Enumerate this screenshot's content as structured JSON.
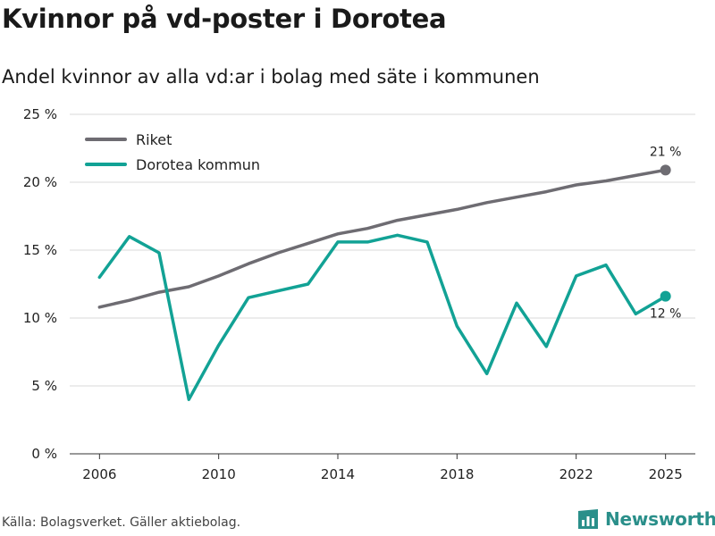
{
  "title": "Kvinnor på vd-poster i Dorotea",
  "subtitle": "Andel kvinnor av alla vd:ar i bolag med säte i kommunen",
  "source": "Källa: Bolagsverket. Gäller aktiebolag.",
  "brand": {
    "name": "Newsworthy",
    "icon": "newsworthy-logo-icon"
  },
  "colors": {
    "riket": "#6e6c72",
    "dorotea": "#12a295",
    "grid": "#d9d9d9",
    "brand": "#2a8f8a"
  },
  "chart_data": {
    "type": "line",
    "title": "Kvinnor på vd-poster i Dorotea",
    "subtitle": "Andel kvinnor av alla vd:ar i bolag med säte i kommunen",
    "xlabel": "",
    "ylabel": "",
    "xlim": [
      2005,
      2026
    ],
    "ylim": [
      0,
      25
    ],
    "x_ticks": [
      2006,
      2010,
      2014,
      2018,
      2022,
      2025
    ],
    "y_ticks": [
      0,
      5,
      10,
      15,
      20,
      25
    ],
    "y_tick_labels": [
      "0 %",
      "5 %",
      "10 %",
      "15 %",
      "20 %",
      "25 %"
    ],
    "grid": true,
    "legend_position": "top-left",
    "x": [
      2006,
      2007,
      2008,
      2009,
      2010,
      2011,
      2012,
      2013,
      2014,
      2015,
      2016,
      2017,
      2018,
      2019,
      2020,
      2021,
      2022,
      2023,
      2024,
      2025
    ],
    "series": [
      {
        "name": "Riket",
        "color": "#6e6c72",
        "end_label": "21 %",
        "values": [
          10.8,
          11.3,
          11.9,
          12.3,
          13.1,
          14.0,
          14.8,
          15.5,
          16.2,
          16.6,
          17.2,
          17.6,
          18.0,
          18.5,
          18.9,
          19.3,
          19.8,
          20.1,
          20.5,
          20.9
        ]
      },
      {
        "name": "Dorotea kommun",
        "color": "#12a295",
        "end_label": "12 %",
        "values": [
          13.0,
          16.0,
          14.8,
          4.0,
          8.0,
          11.5,
          12.0,
          12.5,
          15.6,
          15.6,
          16.1,
          15.6,
          9.4,
          5.9,
          11.1,
          7.9,
          13.1,
          13.9,
          10.3,
          11.6
        ]
      }
    ]
  }
}
